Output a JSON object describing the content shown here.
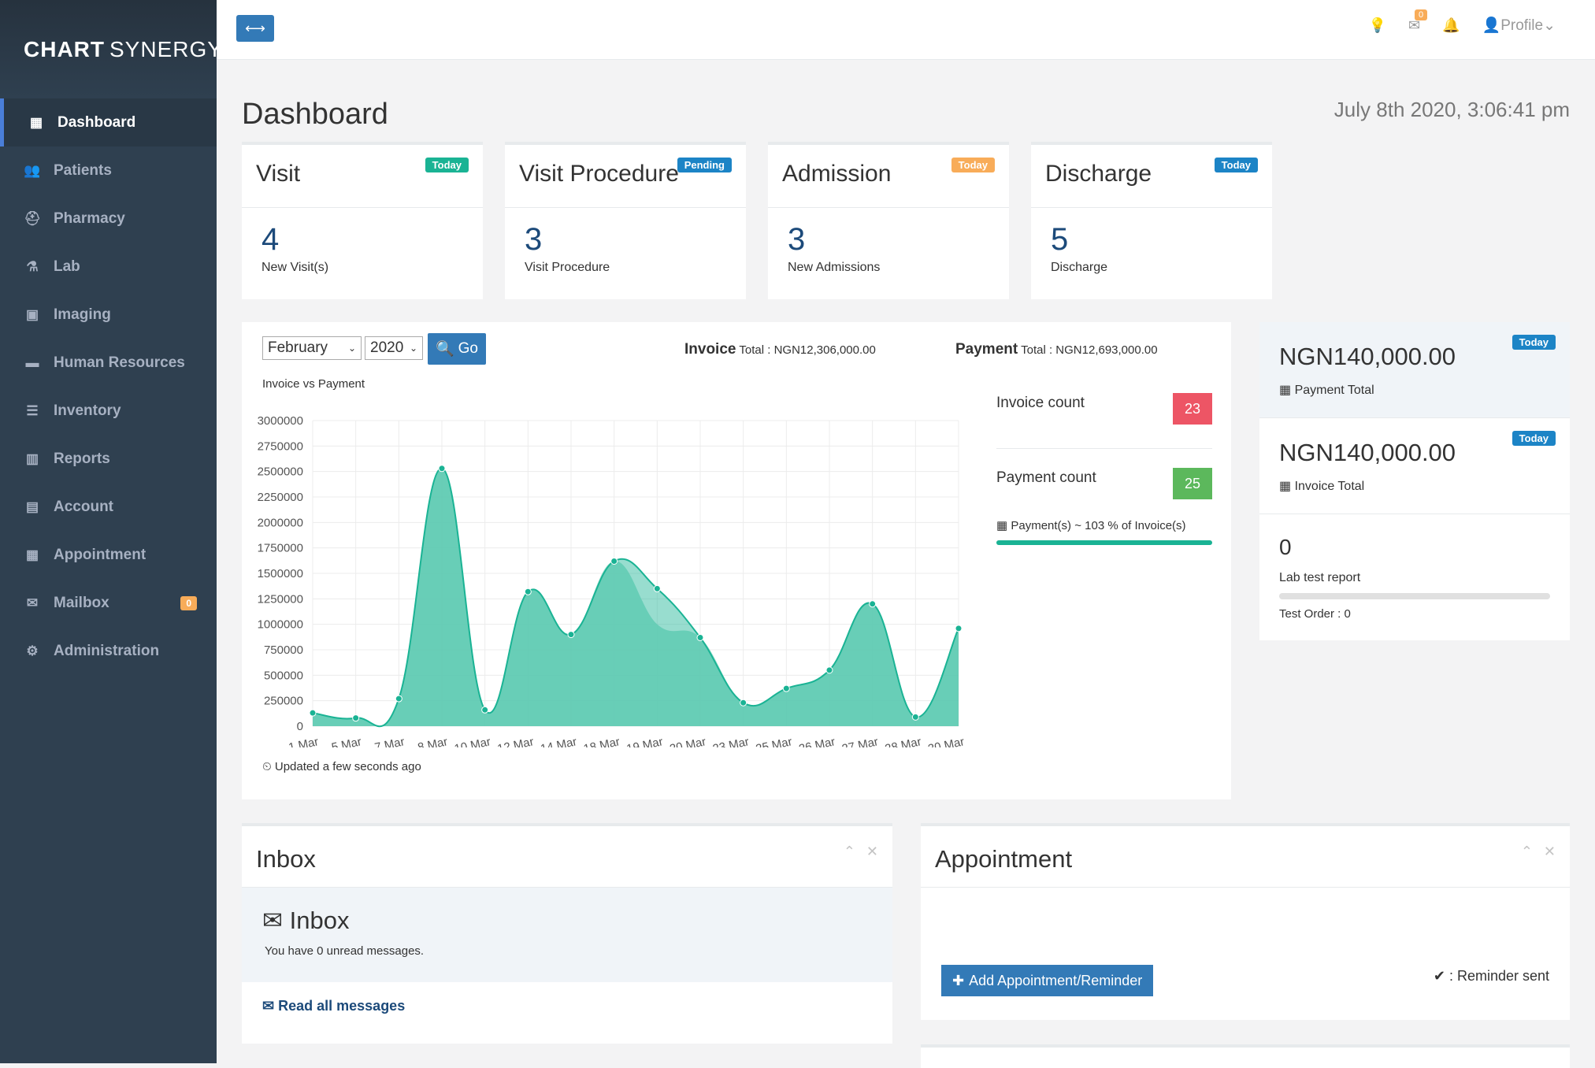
{
  "brand": {
    "strong": "CHART",
    "light": "SYNERGY"
  },
  "sidebar": {
    "items": [
      {
        "label": "Dashboard",
        "icon": "dashboard-icon",
        "glyph": "▦",
        "active": true
      },
      {
        "label": "Patients",
        "icon": "users-icon",
        "glyph": "👥"
      },
      {
        "label": "Pharmacy",
        "icon": "briefcase-medical-icon",
        "glyph": "⛑"
      },
      {
        "label": "Lab",
        "icon": "flask-icon",
        "glyph": "⚗"
      },
      {
        "label": "Imaging",
        "icon": "image-icon",
        "glyph": "▣"
      },
      {
        "label": "Human Resources",
        "icon": "briefcase-icon",
        "glyph": "▬"
      },
      {
        "label": "Inventory",
        "icon": "list-icon",
        "glyph": "☰"
      },
      {
        "label": "Reports",
        "icon": "bar-chart-icon",
        "glyph": "▥"
      },
      {
        "label": "Account",
        "icon": "wallet-icon",
        "glyph": "▤"
      },
      {
        "label": "Appointment",
        "icon": "calendar-icon",
        "glyph": "▦"
      },
      {
        "label": "Mailbox",
        "icon": "envelope-icon",
        "glyph": "✉",
        "badge": "0"
      },
      {
        "label": "Administration",
        "icon": "cogs-icon",
        "glyph": "⚙"
      }
    ]
  },
  "topbar": {
    "mail_badge": "0",
    "profile": "Profile"
  },
  "page": {
    "title": "Dashboard",
    "datetime": "July 8th 2020, 3:06:41 pm"
  },
  "cards": [
    {
      "title": "Visit",
      "badge": "Today",
      "badge_color": "#1ab394",
      "value": "4",
      "sub": "New Visit(s)"
    },
    {
      "title": "Visit Procedure",
      "badge": "Pending",
      "badge_color": "#1c84c6",
      "value": "3",
      "sub": "Visit Procedure"
    },
    {
      "title": "Admission",
      "badge": "Today",
      "badge_color": "#f8ac59",
      "value": "3",
      "sub": "New Admissions"
    },
    {
      "title": "Discharge",
      "badge": "Today",
      "badge_color": "#1c84c6",
      "value": "5",
      "sub": "Discharge"
    }
  ],
  "filters": {
    "month": "February",
    "year": "2020",
    "go": "Go",
    "caption": "Invoice vs Payment"
  },
  "totals": {
    "invoice_label": "Invoice",
    "invoice_rest": "Total : NGN12,306,000.00",
    "payment_label": "Payment",
    "payment_rest": "Total : NGN12,693,000.00"
  },
  "stats": {
    "invoice_count_label": "Invoice count",
    "invoice_count": "23",
    "invoice_color": "#ed5565",
    "payment_count_label": "Payment count",
    "payment_count": "25",
    "payment_color": "#5cb85c",
    "ratio": "Payment(s) ~ 103 % of Invoice(s)",
    "ratio_fill": 1.0
  },
  "updated": "Updated a few seconds ago",
  "right_stack": {
    "payment_total": "NGN140,000.00",
    "payment_label": "Payment Total",
    "payment_badge": "Today",
    "invoice_total": "NGN140,000.00",
    "invoice_label": "Invoice Total",
    "invoice_badge": "Today",
    "lab_count": "0",
    "lab_label": "Lab test report",
    "test_order": "Test Order : 0",
    "lab_fill": 0
  },
  "inbox": {
    "panel_title": "Inbox",
    "heading": "Inbox",
    "unread": "You have 0 unread messages.",
    "link": "Read all messages"
  },
  "appointment": {
    "panel_title": "Appointment",
    "add_button": "Add Appointment/Reminder",
    "legend": ": Reminder sent"
  },
  "chart_data": {
    "type": "area",
    "title": "",
    "x": [
      "1 Mar",
      "5 Mar",
      "7 Mar",
      "8 Mar",
      "10 Mar",
      "12 Mar",
      "14 Mar",
      "18 Mar",
      "19 Mar",
      "20 Mar",
      "23 Mar",
      "25 Mar",
      "26 Mar",
      "27 Mar",
      "28 Mar",
      "30 Mar"
    ],
    "series": [
      {
        "values": [
          130000,
          80000,
          270000,
          2530000,
          160000,
          1320000,
          900000,
          1620000,
          1000000,
          870000,
          230000,
          370000,
          550000,
          1200000,
          90000,
          960000
        ],
        "color": "#9fe0cf"
      },
      {
        "values": [
          130000,
          80000,
          270000,
          2530000,
          160000,
          1320000,
          900000,
          1620000,
          1350000,
          870000,
          230000,
          370000,
          550000,
          1200000,
          90000,
          960000
        ],
        "color": "#1ab394"
      }
    ],
    "ylim": [
      0,
      3000000
    ],
    "yticks": [
      0,
      250000,
      500000,
      750000,
      1000000,
      1250000,
      1500000,
      1750000,
      2000000,
      2250000,
      2500000,
      2750000,
      3000000
    ],
    "grid": true
  }
}
